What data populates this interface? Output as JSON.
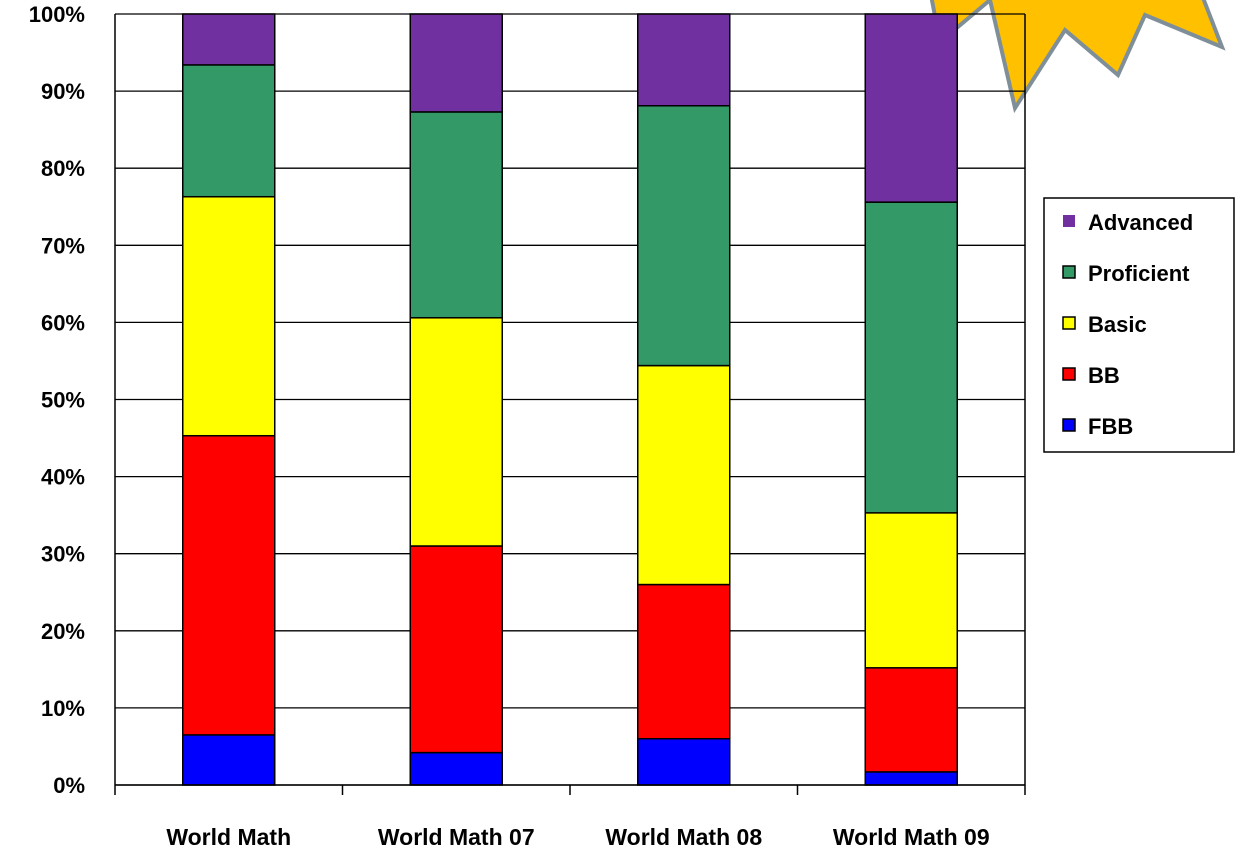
{
  "chart_data": {
    "type": "bar",
    "stacked": true,
    "categories": [
      "World Math",
      "World Math 07",
      "World Math 08",
      "World Math 09"
    ],
    "series": [
      {
        "name": "FBB",
        "color": "#0000FF",
        "values": [
          6.5,
          4.2,
          6.0,
          1.7
        ]
      },
      {
        "name": "BB",
        "color": "#FF0000",
        "values": [
          38.8,
          26.8,
          20.0,
          13.5
        ]
      },
      {
        "name": "Basic",
        "color": "#FFFF00",
        "values": [
          31.0,
          29.6,
          28.4,
          20.1
        ]
      },
      {
        "name": "Proficient",
        "color": "#339966",
        "values": [
          17.1,
          26.7,
          33.7,
          40.3
        ]
      },
      {
        "name": "Advanced",
        "color": "#7030A0",
        "values": [
          6.6,
          12.7,
          11.9,
          24.4
        ]
      }
    ],
    "y_ticks": [
      "0%",
      "10%",
      "20%",
      "30%",
      "40%",
      "50%",
      "60%",
      "70%",
      "80%",
      "90%",
      "100%"
    ],
    "ylim": [
      0,
      100
    ],
    "grid": true,
    "legend_position": "right",
    "legend_order": [
      "Advanced",
      "Proficient",
      "Basic",
      "BB",
      "FBB"
    ]
  },
  "decoration": {
    "name": "starburst",
    "fill": "#FFC000",
    "stroke": "#7F8F99"
  }
}
